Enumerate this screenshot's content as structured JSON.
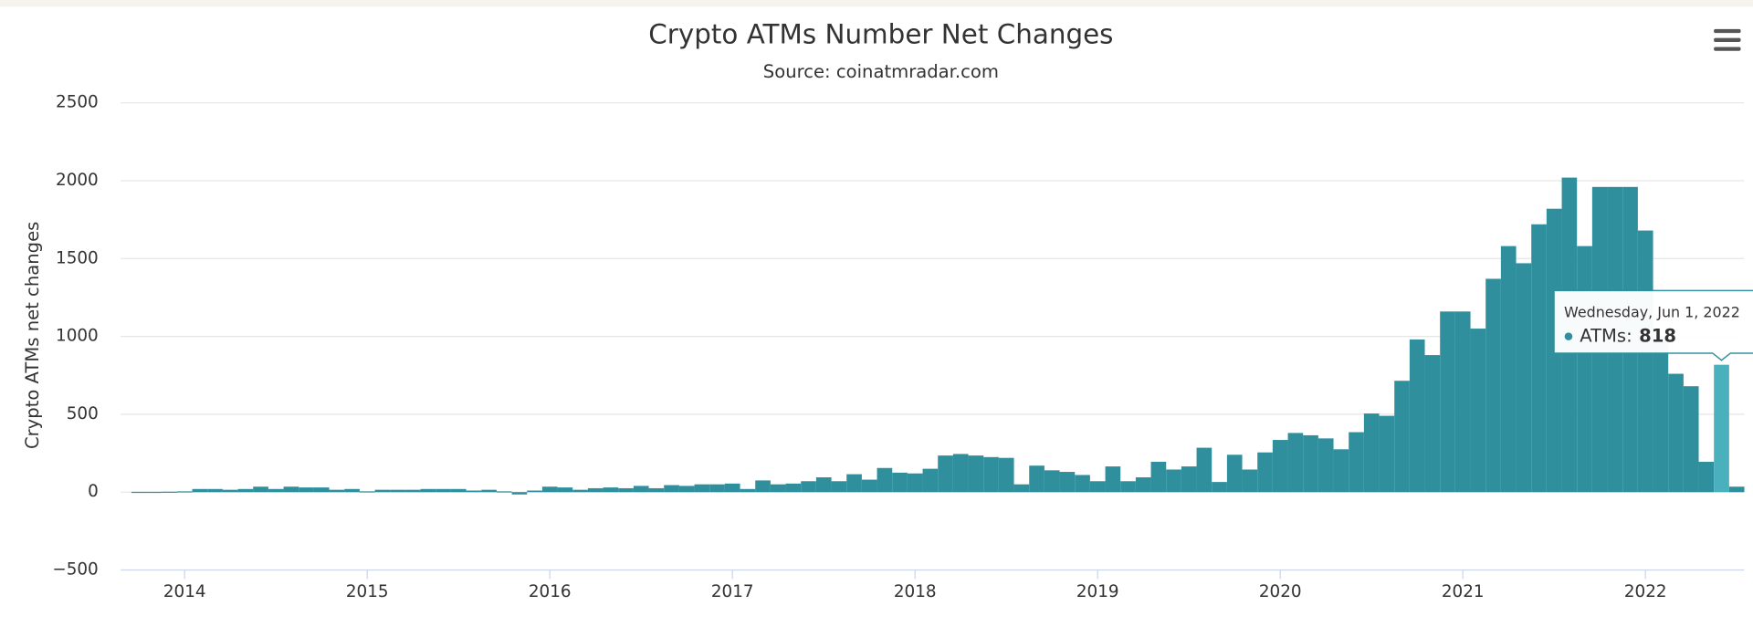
{
  "chart_data": {
    "type": "bar",
    "title": "Crypto ATMs Number Net Changes",
    "subtitle": "Source: coinatmradar.com",
    "y_label": "Crypto ATMs net changes",
    "color": "#2f8f9d",
    "highlight_color": "#4bb0bd",
    "grid": true,
    "x": [
      "2013-10",
      "2013-11",
      "2013-12",
      "2014-01",
      "2014-02",
      "2014-03",
      "2014-04",
      "2014-05",
      "2014-06",
      "2014-07",
      "2014-08",
      "2014-09",
      "2014-10",
      "2014-11",
      "2014-12",
      "2015-01",
      "2015-02",
      "2015-03",
      "2015-04",
      "2015-05",
      "2015-06",
      "2015-07",
      "2015-08",
      "2015-09",
      "2015-10",
      "2015-11",
      "2015-12",
      "2016-01",
      "2016-02",
      "2016-03",
      "2016-04",
      "2016-05",
      "2016-06",
      "2016-07",
      "2016-08",
      "2016-09",
      "2016-10",
      "2016-11",
      "2016-12",
      "2017-01",
      "2017-02",
      "2017-03",
      "2017-04",
      "2017-05",
      "2017-06",
      "2017-07",
      "2017-08",
      "2017-09",
      "2017-10",
      "2017-11",
      "2017-12",
      "2018-01",
      "2018-02",
      "2018-03",
      "2018-04",
      "2018-05",
      "2018-06",
      "2018-07",
      "2018-08",
      "2018-09",
      "2018-10",
      "2018-11",
      "2018-12",
      "2019-01",
      "2019-02",
      "2019-03",
      "2019-04",
      "2019-05",
      "2019-06",
      "2019-07",
      "2019-08",
      "2019-09",
      "2019-10",
      "2019-11",
      "2019-12",
      "2020-01",
      "2020-02",
      "2020-03",
      "2020-04",
      "2020-05",
      "2020-06",
      "2020-07",
      "2020-08",
      "2020-09",
      "2020-10",
      "2020-11",
      "2020-12",
      "2021-01",
      "2021-02",
      "2021-03",
      "2021-04",
      "2021-05",
      "2021-06",
      "2021-07",
      "2021-08",
      "2021-09",
      "2021-10",
      "2021-11",
      "2021-12",
      "2022-01",
      "2022-02",
      "2022-03",
      "2022-04",
      "2022-05",
      "2022-06",
      "2022-07"
    ],
    "values": [
      2,
      2,
      3,
      5,
      20,
      20,
      15,
      20,
      35,
      20,
      35,
      30,
      30,
      15,
      20,
      5,
      15,
      15,
      15,
      20,
      20,
      20,
      10,
      15,
      5,
      -15,
      10,
      35,
      30,
      15,
      25,
      30,
      25,
      40,
      25,
      45,
      40,
      50,
      50,
      55,
      20,
      75,
      50,
      55,
      70,
      95,
      70,
      115,
      80,
      155,
      125,
      120,
      150,
      235,
      245,
      235,
      225,
      220,
      50,
      170,
      140,
      130,
      110,
      70,
      165,
      70,
      95,
      195,
      145,
      165,
      285,
      65,
      240,
      145,
      255,
      335,
      380,
      365,
      345,
      275,
      385,
      505,
      490,
      715,
      980,
      880,
      1160,
      1160,
      1050,
      1370,
      1580,
      1470,
      1720,
      1820,
      2020,
      1580,
      1960,
      1960,
      1960,
      1680,
      1000,
      760,
      680,
      195,
      818,
      35
    ],
    "xlim": [
      2013.65,
      2022.54
    ],
    "xticks": [
      2014,
      2015,
      2016,
      2017,
      2018,
      2019,
      2020,
      2021,
      2022
    ],
    "ylim": [
      -500,
      2500
    ],
    "yticks": [
      {
        "value": -500,
        "label": "−500"
      },
      0,
      500,
      1000,
      1500,
      2000,
      2500
    ],
    "tooltip": {
      "x": "2022-06",
      "header": "Wednesday, Jun 1, 2022",
      "label": "ATMs:"
    }
  }
}
